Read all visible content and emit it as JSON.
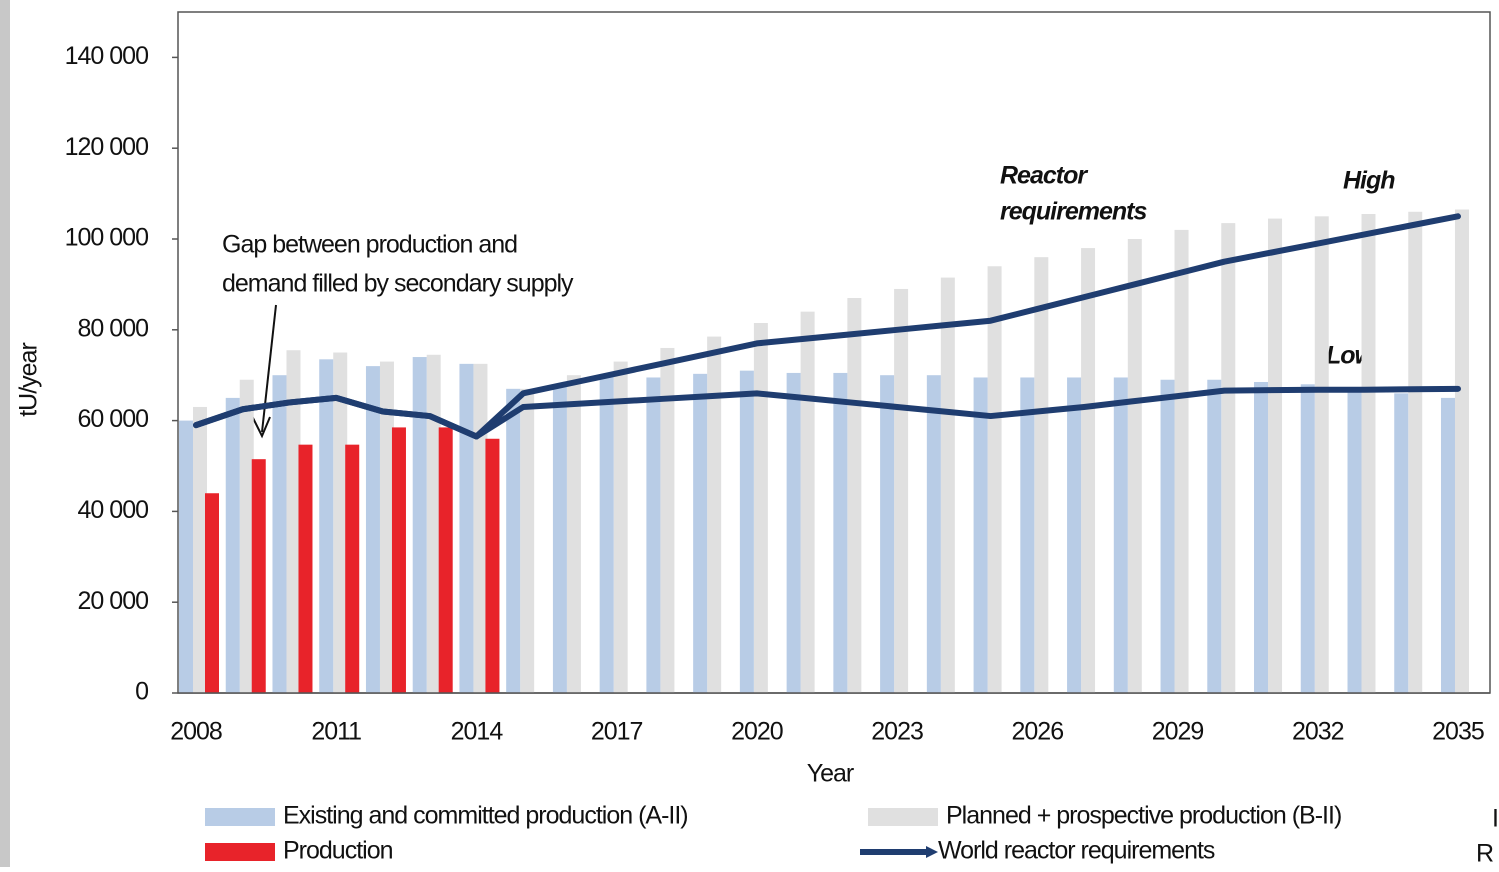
{
  "chart_data": {
    "type": "bar",
    "y_axis_label": "tU/year",
    "x_axis_label": "Year",
    "categories": [
      "2008",
      null,
      null,
      "2011",
      null,
      null,
      "2014",
      null,
      null,
      "2017",
      null,
      null,
      "2020",
      null,
      null,
      "2023",
      null,
      null,
      "2026",
      null,
      null,
      "2029",
      null,
      null,
      "2032",
      null,
      null,
      "2035"
    ],
    "ylim": [
      0,
      150000
    ],
    "yticks": [
      0,
      {
        "value": 20000,
        "label": "20 000"
      },
      {
        "value": 40000,
        "label": "40 000"
      },
      {
        "value": 60000,
        "label": "60 000"
      },
      {
        "value": 80000,
        "label": "80 000"
      },
      {
        "value": 100000,
        "label": "100 000"
      },
      {
        "value": 120000,
        "label": "120 000"
      },
      {
        "value": 140000,
        "label": "140 000"
      }
    ],
    "series": [
      {
        "name": "Existing and committed production (A-II)",
        "type": "bar",
        "color": "#b8cce6",
        "values": [
          60000,
          65000,
          70000,
          73500,
          72000,
          74000,
          72500,
          67000,
          68000,
          70000,
          69500,
          70300,
          71000,
          70500,
          70500,
          70000,
          70000,
          69500,
          69500,
          69500,
          69500,
          69000,
          69000,
          68500,
          68000,
          67000,
          66000,
          65000
        ]
      },
      {
        "name": "Planned + prospective production (B-II)",
        "type": "bar",
        "color": "#e0e0e0",
        "values": [
          63000,
          69000,
          75500,
          75000,
          73000,
          74500,
          72500,
          67000,
          70000,
          73000,
          76000,
          78500,
          81500,
          84000,
          87000,
          89000,
          91500,
          94000,
          96000,
          98000,
          100000,
          102000,
          103500,
          104500,
          105000,
          105500,
          106000,
          106500
        ]
      },
      {
        "name": "Production",
        "type": "bar",
        "color": "#e8232a",
        "values": [
          44000,
          51500,
          54700,
          54700,
          58500,
          58500,
          56000,
          null,
          null,
          null,
          null,
          null,
          null,
          null,
          null,
          null,
          null,
          null,
          null,
          null,
          null,
          null,
          null,
          null,
          null,
          null,
          null,
          null
        ]
      },
      {
        "name": "World reactor requirements",
        "type": "line",
        "color": "#1f3d70",
        "values": [
          59000,
          62500,
          64000,
          65000,
          62000,
          61000,
          56500,
          66000,
          68200,
          70400,
          72600,
          74800,
          77000,
          78000,
          79000,
          80000,
          81000,
          82000,
          84600,
          87200,
          89800,
          92400,
          95000,
          97000,
          99000,
          101000,
          103000,
          105000
        ]
      },
      {
        "type": "line",
        "color": "#1f3d70",
        "values": [
          59000,
          62500,
          64000,
          65000,
          62000,
          61000,
          56500,
          63000,
          63600,
          64200,
          64800,
          65400,
          66000,
          65000,
          64000,
          63000,
          62000,
          61000,
          62000,
          63000,
          64200,
          65400,
          66600,
          66700,
          66800,
          66800,
          66900,
          67000
        ]
      }
    ],
    "annotations": {
      "gap": [
        "Gap between production and",
        "demand filled by secondary supply"
      ],
      "reactor": [
        "Reactor",
        "requirements"
      ],
      "high": "High",
      "low": "Low"
    },
    "edge_texts": [
      "I",
      "R"
    ]
  }
}
